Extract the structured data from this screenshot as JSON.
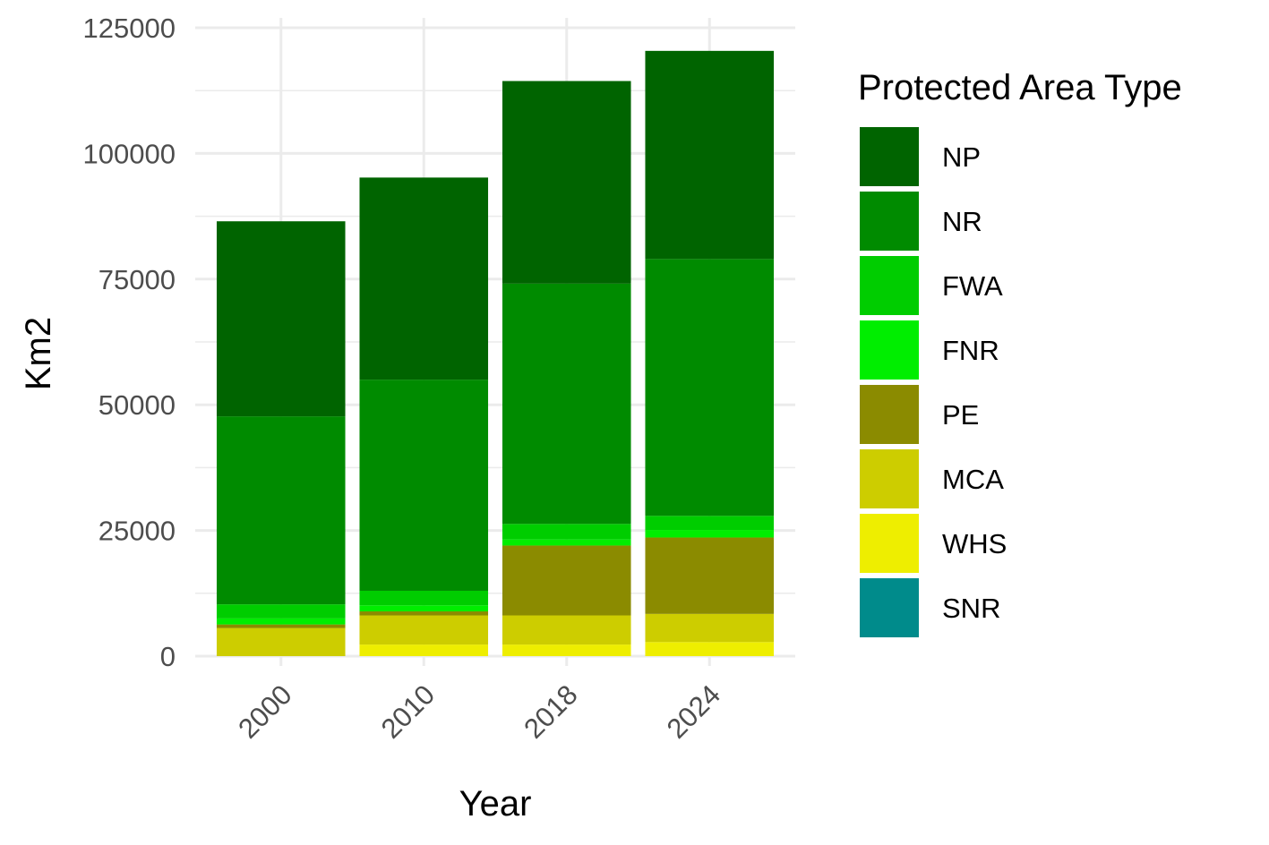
{
  "chart_data": {
    "type": "bar",
    "stacked": true,
    "categories": [
      "2000",
      "2010",
      "2018",
      "2024"
    ],
    "xlabel": "Year",
    "ylabel": "Km2",
    "ylim": [
      0,
      125000
    ],
    "yticks": [
      0,
      25000,
      50000,
      75000,
      100000,
      125000
    ],
    "ytick_labels": [
      "0",
      "25000",
      "50000",
      "75000",
      "100000",
      "125000"
    ],
    "grid": true,
    "legend": {
      "title": "Protected Area Type",
      "position": "right"
    },
    "series": [
      {
        "name": "SNR",
        "color": "#008b8b",
        "values": [
          0,
          0,
          0,
          0
        ]
      },
      {
        "name": "WHS",
        "color": "#eeee00",
        "values": [
          0,
          2300,
          2300,
          2800
        ]
      },
      {
        "name": "MCA",
        "color": "#cdcd00",
        "values": [
          5600,
          5800,
          5800,
          5600
        ]
      },
      {
        "name": "PE",
        "color": "#8b8b00",
        "values": [
          700,
          800,
          13900,
          15200
        ]
      },
      {
        "name": "FNR",
        "color": "#00ee00",
        "values": [
          1200,
          1200,
          1200,
          1500
        ]
      },
      {
        "name": "FWA",
        "color": "#00cd00",
        "values": [
          2800,
          2900,
          3100,
          2800
        ]
      },
      {
        "name": "NR",
        "color": "#008b00",
        "values": [
          37400,
          42000,
          47800,
          51100
        ]
      },
      {
        "name": "NP",
        "color": "#006400",
        "values": [
          38800,
          40200,
          40300,
          41400
        ]
      }
    ]
  }
}
